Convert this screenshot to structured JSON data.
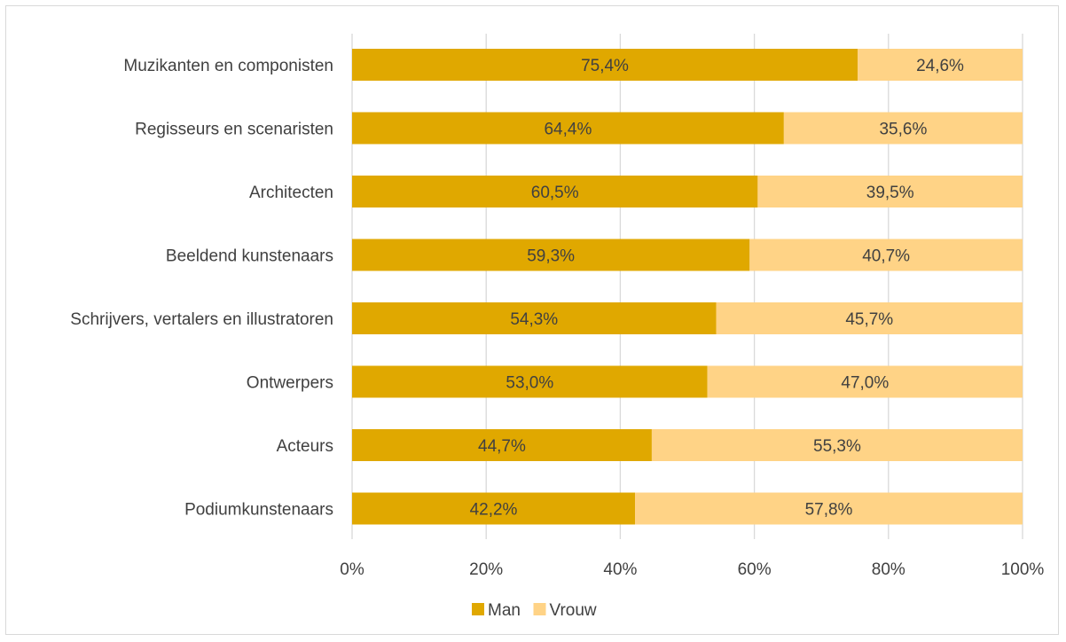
{
  "chart_data": {
    "type": "bar",
    "orientation": "horizontal",
    "stacked": "percent",
    "title": "",
    "xlabel": "",
    "ylabel": "",
    "categories": [
      "Muzikanten en componisten",
      "Regisseurs en scenaristen",
      "Architecten",
      "Beeldend kunstenaars",
      "Schrijvers, vertalers en illustratoren",
      "Ontwerpers",
      "Acteurs",
      "Podiumkunstenaars"
    ],
    "series": [
      {
        "name": "Man",
        "color": "#e0a800",
        "values": [
          75.4,
          64.4,
          60.5,
          59.3,
          54.3,
          53.0,
          44.7,
          42.2
        ],
        "labels": [
          "75,4%",
          "64,4%",
          "60,5%",
          "59,3%",
          "54,3%",
          "53,0%",
          "44,7%",
          "42,2%"
        ]
      },
      {
        "name": "Vrouw",
        "color": "#ffd386",
        "values": [
          24.6,
          35.6,
          39.5,
          40.7,
          45.7,
          47.0,
          55.3,
          57.8
        ],
        "labels": [
          "24,6%",
          "35,6%",
          "39,5%",
          "40,7%",
          "45,7%",
          "47,0%",
          "55,3%",
          "57,8%"
        ]
      }
    ],
    "xlim": [
      0,
      100
    ],
    "xticks": [
      0,
      20,
      40,
      60,
      80,
      100
    ],
    "xtick_labels": [
      "0%",
      "20%",
      "40%",
      "60%",
      "80%",
      "100%"
    ],
    "grid": true,
    "legend_position": "bottom"
  }
}
